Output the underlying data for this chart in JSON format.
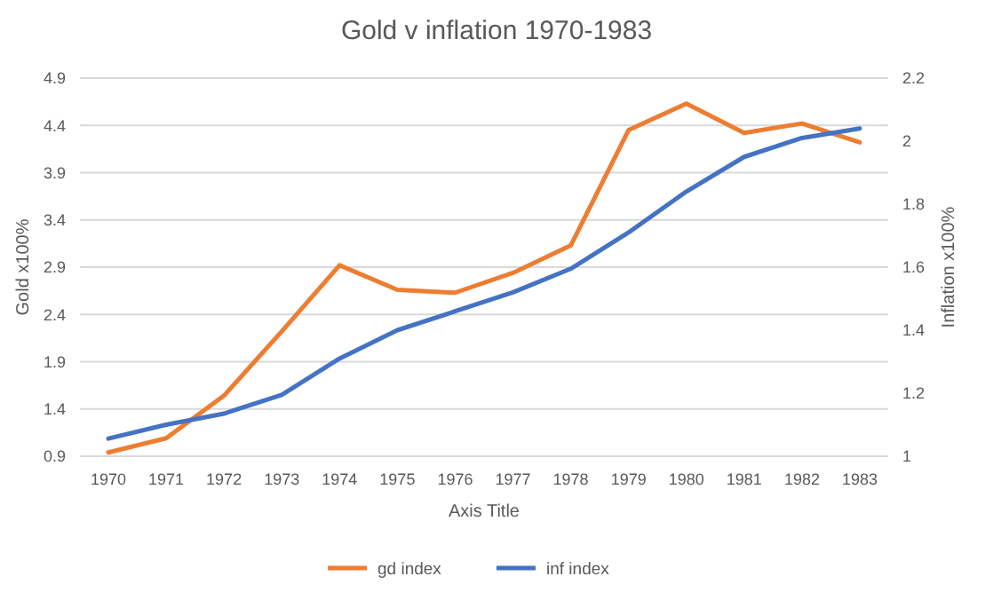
{
  "chart_data": {
    "type": "line",
    "title": "Gold v inflation 1970-1983",
    "xlabel": "Axis Title",
    "ylabel": "Gold x100%",
    "y2label": "Inflation x100%",
    "categories": [
      "1970",
      "1971",
      "1972",
      "1973",
      "1974",
      "1975",
      "1976",
      "1977",
      "1978",
      "1979",
      "1980",
      "1981",
      "1982",
      "1983"
    ],
    "series": [
      {
        "name": "gd index",
        "color": "#ed7d31",
        "values": [
          0.94,
          1.09,
          1.54,
          2.22,
          2.92,
          2.66,
          2.63,
          2.84,
          3.13,
          4.35,
          4.63,
          4.32,
          4.42,
          4.22
        ]
      },
      {
        "name": "inf index",
        "color": "#4472c4",
        "axis": "y2",
        "values": [
          1.056,
          1.1,
          1.135,
          1.195,
          1.31,
          1.4,
          1.46,
          1.52,
          1.595,
          1.71,
          1.84,
          1.95,
          2.01,
          2.04
        ]
      }
    ],
    "ylim": [
      0.9,
      4.9
    ],
    "yticks": [
      0.9,
      1.4,
      1.9,
      2.4,
      2.9,
      3.4,
      3.9,
      4.4,
      4.9
    ],
    "y2lim": [
      1,
      2.2
    ],
    "y2ticks": [
      1,
      1.2,
      1.4,
      1.6,
      1.8,
      2,
      2.2
    ],
    "grid": "y",
    "legend": "bottom",
    "marker": "none",
    "line_style": "solid"
  }
}
